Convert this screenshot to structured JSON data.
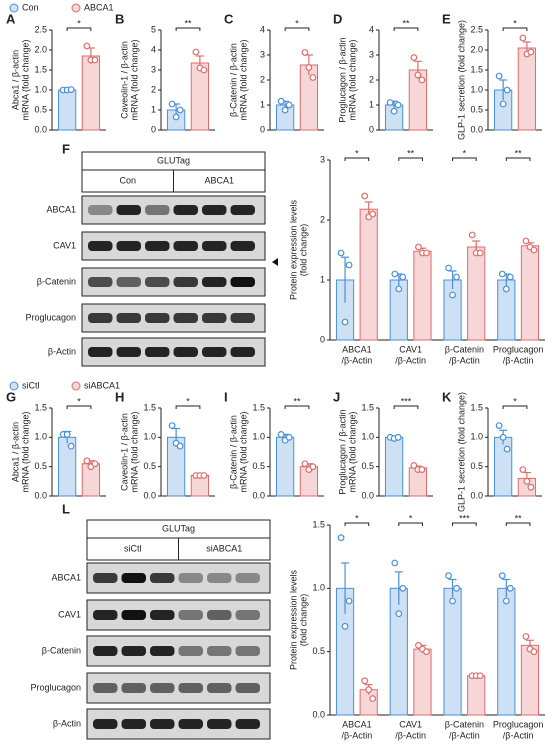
{
  "chart_data": [
    {
      "type": "bar",
      "panel": "A",
      "legend": true,
      "ylabel": [
        "Abca1 / β-actin",
        "mRNA (fold change)"
      ],
      "ylim": [
        0,
        2.5
      ],
      "yticks": [
        {
          "value": 0,
          "label": "0.0"
        },
        0.5,
        {
          "value": 1,
          "label": "1.0"
        },
        1.5,
        {
          "value": 2,
          "label": "2.0"
        },
        2.5
      ],
      "significance": [
        "*"
      ],
      "series": [
        {
          "name": "Con",
          "color": "#4a90d9",
          "values": [
            1.0
          ],
          "errors": [
            0.02
          ],
          "points": [
            [
              1.0,
              1.0,
              1.01
            ]
          ]
        },
        {
          "name": "ABCA1",
          "color": "#e06c6c",
          "values": [
            1.85
          ],
          "errors": [
            0.2
          ],
          "points": [
            [
              2.1,
              1.75,
              1.75
            ]
          ]
        }
      ]
    },
    {
      "type": "bar",
      "panel": "B",
      "ylabel": [
        "Caveolin-1 / β-actin",
        "mRNA (fold change)"
      ],
      "ylim": [
        0,
        5
      ],
      "yticks": [
        0,
        1,
        2,
        3,
        4,
        5
      ],
      "significance": [
        "**"
      ],
      "series": [
        {
          "color": "#4a90d9",
          "values": [
            1.0
          ],
          "errors": [
            0.3
          ],
          "points": [
            [
              1.3,
              0.65,
              1.0
            ]
          ]
        },
        {
          "color": "#e06c6c",
          "values": [
            3.35
          ],
          "errors": [
            0.35
          ],
          "points": [
            [
              3.9,
              3.1,
              3.0
            ]
          ]
        }
      ]
    },
    {
      "type": "bar",
      "panel": "C",
      "ylabel": [
        "β-Catenin / β-actin",
        "mRNA (fold change)"
      ],
      "ylim": [
        0,
        4
      ],
      "yticks": [
        0,
        1,
        2,
        3,
        4
      ],
      "significance": [
        "*"
      ],
      "series": [
        {
          "color": "#4a90d9",
          "values": [
            1.0
          ],
          "errors": [
            0.15
          ],
          "points": [
            [
              1.15,
              0.8,
              1.0
            ]
          ]
        },
        {
          "color": "#e06c6c",
          "values": [
            2.6
          ],
          "errors": [
            0.4
          ],
          "points": [
            [
              3.1,
              2.5,
              2.1
            ]
          ]
        }
      ]
    },
    {
      "type": "bar",
      "panel": "D",
      "ylabel": [
        "Proglucagon / β-actin",
        "mRNA (fold change)"
      ],
      "ylim": [
        0,
        4
      ],
      "yticks": [
        0,
        1,
        2,
        3,
        4
      ],
      "significance": [
        "**"
      ],
      "series": [
        {
          "color": "#4a90d9",
          "values": [
            1.0
          ],
          "errors": [
            0.15
          ],
          "points": [
            [
              1.1,
              0.75,
              1.0
            ]
          ]
        },
        {
          "color": "#e06c6c",
          "values": [
            2.4
          ],
          "errors": [
            0.35
          ],
          "points": [
            [
              2.9,
              2.2,
              2.0
            ]
          ]
        }
      ]
    },
    {
      "type": "bar",
      "panel": "E",
      "ylabel": [
        "GLP-1 secretion (fold change)"
      ],
      "ylim": [
        0,
        2.5
      ],
      "yticks": [
        {
          "value": 0,
          "label": "0.0"
        },
        0.5,
        {
          "value": 1,
          "label": "1.0"
        },
        1.5,
        {
          "value": 2,
          "label": "2.0"
        },
        2.5
      ],
      "significance": [
        "*"
      ],
      "series": [
        {
          "color": "#4a90d9",
          "values": [
            1.0
          ],
          "errors": [
            0.25
          ],
          "points": [
            [
              1.35,
              0.65,
              1.0
            ]
          ]
        },
        {
          "color": "#e06c6c",
          "values": [
            2.05
          ],
          "errors": [
            0.15
          ],
          "points": [
            [
              2.3,
              1.9,
              1.95
            ]
          ]
        }
      ]
    },
    {
      "type": "bar",
      "panel": "F",
      "ylabel": [
        "Protein expression levels",
        "(fold change)"
      ],
      "ylim": [
        0,
        3
      ],
      "yticks": [
        0,
        1,
        2,
        3
      ],
      "categories": [
        [
          "ABCA1",
          "/β-Actin"
        ],
        [
          "CAV1",
          "/β-Actin"
        ],
        [
          "β-Catenin",
          "/β-Actin"
        ],
        [
          "Proglucagon",
          "/β-Actin"
        ]
      ],
      "significance": [
        "*",
        "**",
        "*",
        "**"
      ],
      "series": [
        {
          "color": "#4a90d9",
          "values": [
            1.0,
            1.0,
            1.0,
            1.0
          ],
          "errors": [
            0.38,
            0.1,
            0.15,
            0.1
          ],
          "points": [
            [
              1.45,
              0.3,
              1.25
            ],
            [
              1.1,
              0.85,
              1.05
            ],
            [
              1.2,
              0.75,
              1.05
            ],
            [
              1.1,
              0.85,
              1.05
            ]
          ]
        },
        {
          "color": "#e06c6c",
          "values": [
            2.18,
            1.48,
            1.55,
            1.57
          ],
          "errors": [
            0.12,
            0.05,
            0.1,
            0.05
          ],
          "points": [
            [
              2.4,
              2.05,
              2.1
            ],
            [
              1.55,
              1.45,
              1.45
            ],
            [
              1.75,
              1.45,
              1.45
            ],
            [
              1.65,
              1.55,
              1.5
            ]
          ]
        }
      ]
    },
    {
      "type": "bar",
      "panel": "G",
      "legend": true,
      "ylabel": [
        "Abca1 / β-actin",
        "mRNA (fold change)"
      ],
      "ylim": [
        0,
        1.5
      ],
      "yticks": [
        {
          "value": 0,
          "label": "0.0"
        },
        0.5,
        {
          "value": 1,
          "label": "1.0"
        },
        1.5
      ],
      "significance": [
        "*"
      ],
      "series": [
        {
          "name": "siCtl",
          "color": "#4a90d9",
          "values": [
            1.0
          ],
          "errors": [
            0.1
          ],
          "points": [
            [
              1.05,
              1.05,
              0.85
            ]
          ]
        },
        {
          "name": "siABCA1",
          "color": "#e06c6c",
          "values": [
            0.55
          ],
          "errors": [
            0.05
          ],
          "points": [
            [
              0.6,
              0.5,
              0.55
            ]
          ]
        }
      ]
    },
    {
      "type": "bar",
      "panel": "H",
      "ylabel": [
        "Caveolin-1 / β-actin",
        "mRNA (fold change)"
      ],
      "ylim": [
        0,
        1.5
      ],
      "yticks": [
        {
          "value": 0,
          "label": "0.0"
        },
        0.5,
        {
          "value": 1,
          "label": "1.0"
        },
        1.5
      ],
      "significance": [
        "*"
      ],
      "series": [
        {
          "color": "#4a90d9",
          "values": [
            1.0
          ],
          "errors": [
            0.15
          ],
          "points": [
            [
              1.2,
              0.9,
              0.85
            ]
          ]
        },
        {
          "color": "#e06c6c",
          "values": [
            0.35
          ],
          "errors": [
            0.01
          ],
          "points": [
            [
              0.35,
              0.35,
              0.35
            ]
          ]
        }
      ]
    },
    {
      "type": "bar",
      "panel": "I",
      "ylabel": [
        "β-Catenin / β-actin",
        "mRNA (fold change)"
      ],
      "ylim": [
        0,
        1.5
      ],
      "yticks": [
        {
          "value": 0,
          "label": "0.0"
        },
        0.5,
        {
          "value": 1,
          "label": "1.0"
        },
        1.5
      ],
      "significance": [
        "**"
      ],
      "series": [
        {
          "color": "#4a90d9",
          "values": [
            1.0
          ],
          "errors": [
            0.05
          ],
          "points": [
            [
              1.05,
              0.95,
              1.0
            ]
          ]
        },
        {
          "color": "#e06c6c",
          "values": [
            0.5
          ],
          "errors": [
            0.05
          ],
          "points": [
            [
              0.55,
              0.45,
              0.5
            ]
          ]
        }
      ]
    },
    {
      "type": "bar",
      "panel": "J",
      "ylabel": [
        "Proglucagon / β-actin",
        "mRNA (fold change)"
      ],
      "ylim": [
        0,
        1.5
      ],
      "yticks": [
        {
          "value": 0,
          "label": "0.0"
        },
        0.5,
        {
          "value": 1,
          "label": "1.0"
        },
        1.5
      ],
      "significance": [
        "***"
      ],
      "series": [
        {
          "color": "#4a90d9",
          "values": [
            1.0
          ],
          "errors": [
            0.02
          ],
          "points": [
            [
              1.0,
              0.98,
              1.0
            ]
          ]
        },
        {
          "color": "#e06c6c",
          "values": [
            0.48
          ],
          "errors": [
            0.03
          ],
          "points": [
            [
              0.52,
              0.45,
              0.45
            ]
          ]
        }
      ]
    },
    {
      "type": "bar",
      "panel": "K",
      "ylabel": [
        "GLP-1 secretion (fold change)"
      ],
      "ylim": [
        0,
        1.5
      ],
      "yticks": [
        {
          "value": 0,
          "label": "0.0"
        },
        0.5,
        {
          "value": 1,
          "label": "1.0"
        },
        1.5
      ],
      "significance": [
        "*"
      ],
      "series": [
        {
          "color": "#4a90d9",
          "values": [
            1.0
          ],
          "errors": [
            0.12
          ],
          "points": [
            [
              1.2,
              1.0,
              0.8
            ]
          ]
        },
        {
          "color": "#e06c6c",
          "values": [
            0.3
          ],
          "errors": [
            0.1
          ],
          "points": [
            [
              0.45,
              0.25,
              0.15
            ]
          ]
        }
      ]
    },
    {
      "type": "bar",
      "panel": "L",
      "ylabel": [
        "Protein expression levels",
        "(fold change)"
      ],
      "ylim": [
        0,
        1.5
      ],
      "yticks": [
        {
          "value": 0,
          "label": "0.0"
        },
        0.5,
        {
          "value": 1,
          "label": "1.0"
        },
        1.5
      ],
      "categories": [
        [
          "ABCA1",
          "/β-Actin"
        ],
        [
          "CAV1",
          "/β-Actin"
        ],
        [
          "β-Catenin",
          "/β-Actin"
        ],
        [
          "Proglucagon",
          "/β-Actin"
        ]
      ],
      "significance": [
        "*",
        "*",
        "***",
        "**"
      ],
      "series": [
        {
          "color": "#4a90d9",
          "values": [
            1.0,
            1.0,
            1.0,
            1.0
          ],
          "errors": [
            0.2,
            0.13,
            0.07,
            0.07
          ],
          "points": [
            [
              1.4,
              0.7,
              0.9
            ],
            [
              1.2,
              0.8,
              1.0
            ],
            [
              1.1,
              0.9,
              1.0
            ],
            [
              1.1,
              0.9,
              1.0
            ]
          ]
        },
        {
          "color": "#e06c6c",
          "values": [
            0.2,
            0.52,
            0.31,
            0.55
          ],
          "errors": [
            0.04,
            0.03,
            0.005,
            0.04
          ],
          "points": [
            [
              0.27,
              0.2,
              0.13
            ],
            [
              0.55,
              0.52,
              0.5
            ],
            [
              0.31,
              0.31,
              0.31
            ],
            [
              0.62,
              0.52,
              0.5
            ]
          ]
        }
      ]
    }
  ],
  "blots": [
    {
      "cell_line": "GLUTag",
      "groups": [
        "Con",
        "ABCA1"
      ],
      "rows": [
        "ABCA1",
        "CAV1",
        "β-Catenin",
        "Proglucagon",
        "β-Actin"
      ]
    },
    {
      "cell_line": "GLUTag",
      "groups": [
        "siCtl",
        "siABCA1"
      ],
      "rows": [
        "ABCA1",
        "CAV1",
        "β-Catenin",
        "Proglucagon",
        "β-Actin"
      ]
    }
  ]
}
